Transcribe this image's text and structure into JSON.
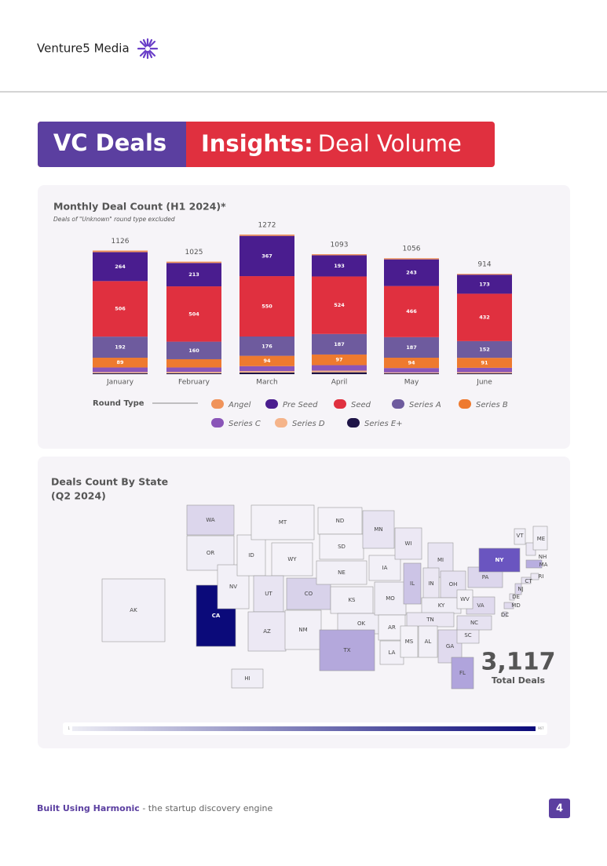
{
  "header": {
    "brand": "Venture5 Media"
  },
  "banner": {
    "left": "VC Deals",
    "right_bold": "Insights:",
    "right_normal": "Deal Volume"
  },
  "chart_data": {
    "type": "stacked_bar",
    "title": "Monthly Deal Count (H1 2024)*",
    "subtitle": "Deals of \"Unknown\" round type excluded",
    "legend_title": "Round Type",
    "categories": [
      "January",
      "February",
      "March",
      "April",
      "May",
      "June"
    ],
    "totals": [
      1126,
      1025,
      1272,
      1093,
      1056,
      914
    ],
    "series": [
      {
        "name": "Angel",
        "color": "#f0935a",
        "values": [
          14,
          12,
          12,
          10,
          10,
          8
        ]
      },
      {
        "name": "Pre Seed",
        "color": "#4a1d8f",
        "values": [
          264,
          213,
          367,
          193,
          243,
          173
        ]
      },
      {
        "name": "Seed",
        "color": "#e0303f",
        "values": [
          506,
          504,
          550,
          524,
          466,
          432
        ]
      },
      {
        "name": "Series A",
        "color": "#6e5b9e",
        "values": [
          192,
          160,
          176,
          187,
          187,
          152
        ]
      },
      {
        "name": "Series B",
        "color": "#ee7a2f",
        "values": [
          89,
          75,
          94,
          97,
          94,
          91
        ]
      },
      {
        "name": "Series C",
        "color": "#8a55b8",
        "values": [
          42,
          40,
          45,
          50,
          40,
          40
        ]
      },
      {
        "name": "Series D",
        "color": "#f5b48a",
        "values": [
          10,
          12,
          13,
          15,
          8,
          10
        ]
      },
      {
        "name": "Series E+",
        "color": "#1e1447",
        "values": [
          9,
          9,
          15,
          17,
          8,
          8
        ]
      }
    ]
  },
  "map": {
    "title_line1": "Deals Count By State",
    "title_line2": "(Q2 2024)",
    "total": "3,117",
    "total_label": "Total Deals",
    "scale_min": "1",
    "scale_max": "967",
    "scale_colors": [
      "#ececf4",
      "#0b0a7a"
    ],
    "states": [
      {
        "label": "WA",
        "color": "#dcd6ec"
      },
      {
        "label": "OR",
        "color": "#f0eef6"
      },
      {
        "label": "CA",
        "color": "#0b0a7a"
      },
      {
        "label": "NV",
        "color": "#f2f0f7"
      },
      {
        "label": "ID",
        "color": "#f4f2f8"
      },
      {
        "label": "MT",
        "color": "#f4f2f8"
      },
      {
        "label": "WY",
        "color": "#f4f2f8"
      },
      {
        "label": "UT",
        "color": "#e8e4f2"
      },
      {
        "label": "CO",
        "color": "#d8d2ea"
      },
      {
        "label": "AZ",
        "color": "#ece8f4"
      },
      {
        "label": "NM",
        "color": "#f2f0f7"
      },
      {
        "label": "ND",
        "color": "#f4f2f8"
      },
      {
        "label": "SD",
        "color": "#f4f2f8"
      },
      {
        "label": "NE",
        "color": "#f2f0f7"
      },
      {
        "label": "KS",
        "color": "#f2f0f7"
      },
      {
        "label": "OK",
        "color": "#f0eef6"
      },
      {
        "label": "TX",
        "color": "#b4a8dc"
      },
      {
        "label": "MN",
        "color": "#e8e4f2"
      },
      {
        "label": "IA",
        "color": "#f2f0f7"
      },
      {
        "label": "MO",
        "color": "#f0eef6"
      },
      {
        "label": "AR",
        "color": "#f4f2f8"
      },
      {
        "label": "LA",
        "color": "#f2f0f7"
      },
      {
        "label": "WI",
        "color": "#ece8f4"
      },
      {
        "label": "IL",
        "color": "#ccc4e6"
      },
      {
        "label": "MI",
        "color": "#e8e4f2"
      },
      {
        "label": "IN",
        "color": "#ebe7f3"
      },
      {
        "label": "OH",
        "color": "#e6e2f1"
      },
      {
        "label": "KY",
        "color": "#f0eef6"
      },
      {
        "label": "TN",
        "color": "#ebe7f3"
      },
      {
        "label": "MS",
        "color": "#f4f2f8"
      },
      {
        "label": "AL",
        "color": "#f2f0f7"
      },
      {
        "label": "GA",
        "color": "#e0daee"
      },
      {
        "label": "FL",
        "color": "#b0a4dc"
      },
      {
        "label": "SC",
        "color": "#ece8f4"
      },
      {
        "label": "NC",
        "color": "#e6e2f1"
      },
      {
        "label": "VA",
        "color": "#e0daee"
      },
      {
        "label": "WV",
        "color": "#f4f2f8"
      },
      {
        "label": "PA",
        "color": "#dcd6ec"
      },
      {
        "label": "NY",
        "color": "#6a55c0"
      },
      {
        "label": "VT",
        "color": "#f0eef6"
      },
      {
        "label": "NH",
        "color": "#ece8f4"
      },
      {
        "label": "ME",
        "color": "#f2f0f7"
      },
      {
        "label": "MA",
        "color": "#b8aee0"
      },
      {
        "label": "RI",
        "color": "#ece8f4"
      },
      {
        "label": "CT",
        "color": "#e6e2f1"
      },
      {
        "label": "NJ",
        "color": "#dcd6ec"
      },
      {
        "label": "DE",
        "color": "#ece8f4"
      },
      {
        "label": "MD",
        "color": "#e0daee"
      },
      {
        "label": "DC",
        "color": "#e6e2f1"
      },
      {
        "label": "AK",
        "color": "#f2f0f7"
      },
      {
        "label": "HI",
        "color": "#f0eef6"
      }
    ]
  },
  "footer": {
    "brand": "Built Using Harmonic",
    "tagline": " - the startup discovery engine",
    "page": "4"
  }
}
